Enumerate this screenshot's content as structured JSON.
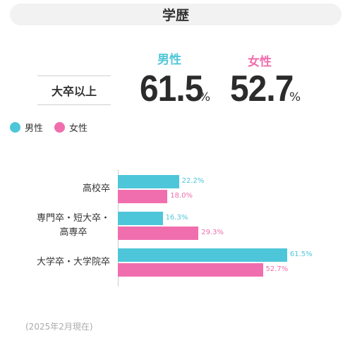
{
  "header": {
    "title": "学歴"
  },
  "summary": {
    "label": "大卒以上",
    "male": {
      "label": "男性",
      "value": "61.5",
      "unit": "%"
    },
    "female": {
      "label": "女性",
      "value": "52.7",
      "unit": "%"
    }
  },
  "colors": {
    "male": "#4ec6d9",
    "female": "#f06eae"
  },
  "legend": {
    "male": "男性",
    "female": "女性"
  },
  "chart_data": {
    "type": "bar",
    "orientation": "horizontal",
    "categories": [
      "高校卒",
      "専門卒・短大卒・高専卒",
      "大学卒・大学院卒"
    ],
    "category_lines": [
      [
        "高校卒"
      ],
      [
        "専門卒・短大卒・",
        "高専卒"
      ],
      [
        "大学卒・大学院卒"
      ]
    ],
    "series": [
      {
        "name": "男性",
        "values": [
          22.2,
          16.3,
          61.5
        ],
        "labels": [
          "22.2%",
          "16.3%",
          "61.5%"
        ]
      },
      {
        "name": "女性",
        "values": [
          18.0,
          29.3,
          52.7
        ],
        "labels": [
          "18.0%",
          "29.3%",
          "52.7%"
        ]
      }
    ],
    "xlim": [
      0,
      100
    ],
    "legend_position": "top-left",
    "grid": false
  },
  "footnote": "(2025年2月現在)"
}
